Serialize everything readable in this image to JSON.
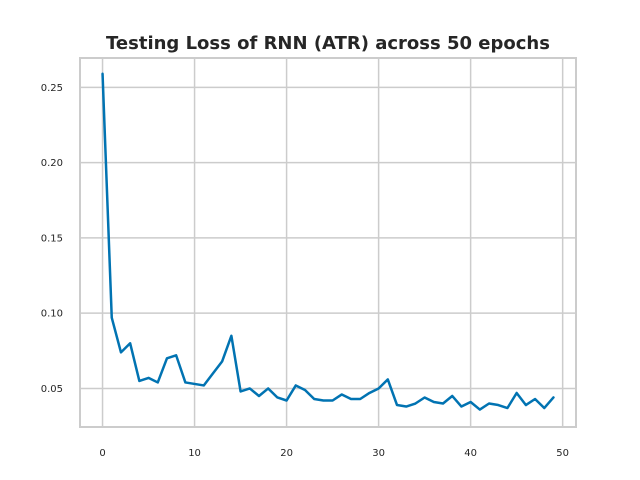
{
  "chart_data": {
    "type": "line",
    "title": "Testing Loss of RNN (ATR) across 50 epochs",
    "xlabel": "",
    "ylabel": "",
    "xlim": [
      -2.45,
      51.45
    ],
    "ylim": [
      0.0244,
      0.2695
    ],
    "x_ticks": [
      0,
      10,
      20,
      30,
      40,
      50
    ],
    "x_tick_labels": [
      "0",
      "10",
      "20",
      "30",
      "40",
      "50"
    ],
    "y_ticks": [
      0.05,
      0.1,
      0.15,
      0.2,
      0.25
    ],
    "y_tick_labels": [
      "0.05",
      "0.10",
      "0.15",
      "0.20",
      "0.25"
    ],
    "grid": true,
    "legend": "none",
    "series": [
      {
        "color": "#0173b2",
        "x": [
          0,
          1,
          2,
          3,
          4,
          5,
          6,
          7,
          8,
          9,
          10,
          11,
          12,
          13,
          14,
          15,
          16,
          17,
          18,
          19,
          20,
          21,
          22,
          23,
          24,
          25,
          26,
          27,
          28,
          29,
          30,
          31,
          32,
          33,
          34,
          35,
          36,
          37,
          38,
          39,
          40,
          41,
          42,
          43,
          44,
          45,
          46,
          47,
          48,
          49
        ],
        "values": [
          0.259,
          0.097,
          0.074,
          0.08,
          0.055,
          0.057,
          0.054,
          0.07,
          0.072,
          0.054,
          0.053,
          0.052,
          0.06,
          0.068,
          0.085,
          0.048,
          0.05,
          0.045,
          0.05,
          0.044,
          0.042,
          0.052,
          0.049,
          0.043,
          0.042,
          0.042,
          0.046,
          0.043,
          0.043,
          0.047,
          0.05,
          0.056,
          0.039,
          0.038,
          0.04,
          0.044,
          0.041,
          0.04,
          0.045,
          0.038,
          0.041,
          0.036,
          0.04,
          0.039,
          0.037,
          0.047,
          0.039,
          0.043,
          0.037,
          0.044
        ]
      }
    ]
  }
}
